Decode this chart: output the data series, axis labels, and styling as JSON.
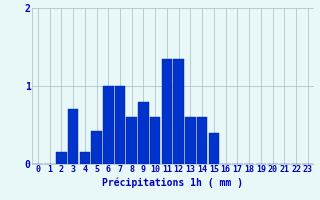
{
  "hours": [
    0,
    1,
    2,
    3,
    4,
    5,
    6,
    7,
    8,
    9,
    10,
    11,
    12,
    13,
    14,
    15,
    16,
    17,
    18,
    19,
    20,
    21,
    22,
    23
  ],
  "values": [
    0.0,
    0.0,
    0.15,
    0.7,
    0.15,
    0.42,
    1.0,
    1.0,
    0.6,
    0.8,
    0.6,
    1.35,
    1.35,
    0.6,
    0.6,
    0.4,
    0.0,
    0.0,
    0.0,
    0.0,
    0.0,
    0.0,
    0.0,
    0.0
  ],
  "bar_color": "#0033cc",
  "bar_edge_color": "#002299",
  "background_color": "#e8f8f8",
  "grid_color": "#aabbbb",
  "text_color": "#0000bb",
  "xlabel": "Précipitations 1h ( mm )",
  "xlim": [
    -0.5,
    23.5
  ],
  "ylim": [
    0,
    2
  ],
  "yticks": [
    0,
    1,
    2
  ],
  "xlabel_fontsize": 7,
  "tick_fontsize": 6
}
